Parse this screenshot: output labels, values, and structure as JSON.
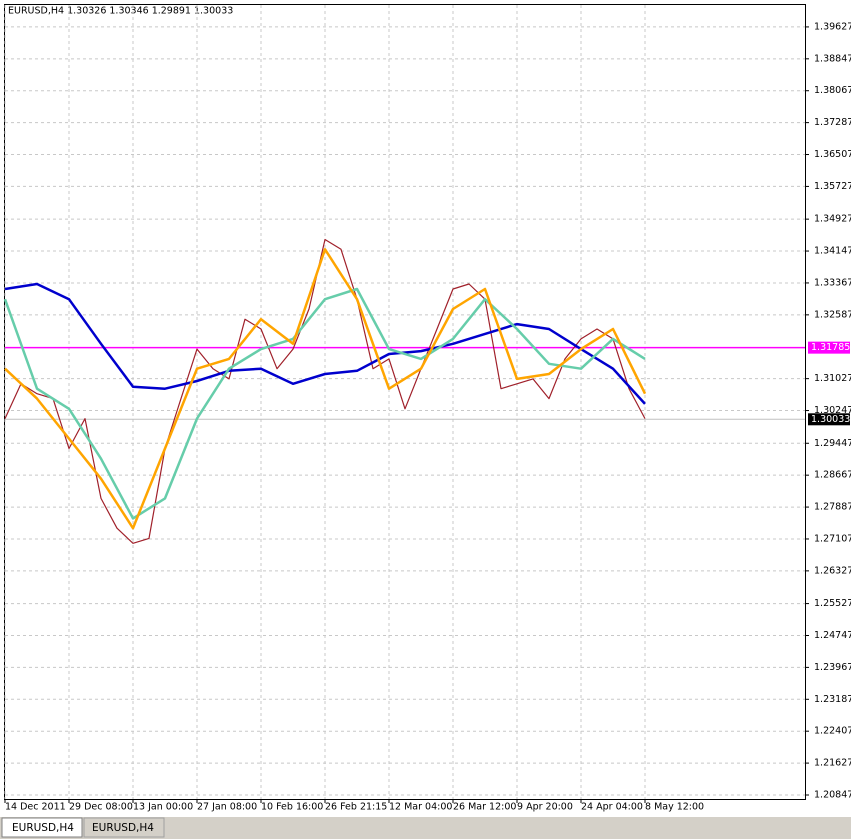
{
  "chart_data": {
    "type": "line",
    "title": "EURUSD,H4  1.30326 1.30346 1.29891 1.30033",
    "ylim": [
      1.20749,
      1.40163
    ],
    "yticks": [
      1.20847,
      1.21627,
      1.22407,
      1.23187,
      1.23967,
      1.24747,
      1.25527,
      1.26327,
      1.27107,
      1.27887,
      1.28667,
      1.29447,
      1.30247,
      1.31027,
      1.32587,
      1.33367,
      1.34147,
      1.34927,
      1.35727,
      1.36507,
      1.37287,
      1.38067,
      1.38847,
      1.39627
    ],
    "xlim": [
      0,
      12.5
    ],
    "xticks": [
      {
        "value": 0,
        "label": "14 Dec 2011"
      },
      {
        "value": 1,
        "label": "29 Dec 08:00"
      },
      {
        "value": 2,
        "label": "13 Jan 00:00"
      },
      {
        "value": 3,
        "label": "27 Jan 08:00"
      },
      {
        "value": 4,
        "label": "10 Feb 16:00"
      },
      {
        "value": 5,
        "label": "26 Feb 21:15"
      },
      {
        "value": 6,
        "label": "12 Mar 04:00"
      },
      {
        "value": 7,
        "label": "26 Mar 12:00"
      },
      {
        "value": 8,
        "label": "9 Apr 20:00"
      },
      {
        "value": 9,
        "label": "24 Apr 04:00"
      },
      {
        "value": 10,
        "label": "8 May 12:00"
      }
    ],
    "grid": true,
    "series": [
      {
        "color": "#a0202a",
        "width": 1.2,
        "x": [
          0,
          0.25,
          0.5,
          0.75,
          1,
          1.25,
          1.5,
          1.75,
          2,
          2.25,
          2.5,
          2.75,
          3,
          3.25,
          3.5,
          3.75,
          4,
          4.25,
          4.5,
          4.75,
          5,
          5.25,
          5.5,
          5.75,
          6,
          6.25,
          6.5,
          6.75,
          7,
          7.25,
          7.5,
          7.75,
          8,
          8.25,
          8.5,
          8.75,
          9,
          9.25,
          9.5,
          9.75,
          10
        ],
        "values": [
          1.3005,
          1.309,
          1.3066,
          1.3054,
          1.2932,
          1.3005,
          1.281,
          1.2737,
          1.27,
          1.2712,
          1.2932,
          1.3054,
          1.3175,
          1.3127,
          1.3102,
          1.3248,
          1.3224,
          1.3127,
          1.3175,
          1.3273,
          1.3443,
          1.3419,
          1.3297,
          1.3127,
          1.3151,
          1.3029,
          1.3127,
          1.3224,
          1.3322,
          1.3334,
          1.3297,
          1.3078,
          1.309,
          1.3102,
          1.3054,
          1.3151,
          1.32,
          1.3224,
          1.32,
          1.3078,
          1.3005
        ]
      },
      {
        "color": "#0000cd",
        "width": 2.5,
        "x": [
          0,
          0.5,
          1,
          1.5,
          2,
          2.5,
          3,
          3.5,
          4,
          4.5,
          5,
          5.5,
          6,
          6.5,
          7,
          7.5,
          8,
          8.5,
          9,
          9.5,
          10
        ],
        "values": [
          1.3322,
          1.3334,
          1.3297,
          1.3188,
          1.3083,
          1.3078,
          1.3097,
          1.3122,
          1.3127,
          1.309,
          1.3114,
          1.3122,
          1.3163,
          1.317,
          1.3188,
          1.3212,
          1.3236,
          1.3224,
          1.3175,
          1.3127,
          1.3041
        ]
      },
      {
        "color": "#66cdaa",
        "width": 2.5,
        "x": [
          0,
          0.5,
          1,
          1.5,
          2,
          2.5,
          3,
          3.5,
          4,
          4.5,
          5,
          5.5,
          6,
          6.5,
          7,
          7.5,
          8,
          8.5,
          9,
          9.5,
          10
        ],
        "values": [
          1.3297,
          1.3078,
          1.3029,
          1.2907,
          1.2761,
          1.281,
          1.3005,
          1.3127,
          1.3175,
          1.32,
          1.3297,
          1.3322,
          1.3175,
          1.3151,
          1.32,
          1.3297,
          1.3224,
          1.3139,
          1.3127,
          1.32,
          1.3151
        ]
      },
      {
        "color": "#ffa500",
        "width": 2.5,
        "x": [
          0,
          0.5,
          1,
          1.5,
          2,
          2.5,
          3,
          3.5,
          4,
          4.5,
          5,
          5.5,
          6,
          6.5,
          7,
          7.5,
          8,
          8.5,
          9,
          9.5,
          10
        ],
        "values": [
          1.3127,
          1.3054,
          1.2956,
          1.2858,
          1.2737,
          1.2932,
          1.3127,
          1.3151,
          1.3248,
          1.3188,
          1.3419,
          1.3297,
          1.3078,
          1.3127,
          1.3273,
          1.3322,
          1.3102,
          1.3114,
          1.3175,
          1.3224,
          1.3066
        ]
      }
    ],
    "hlines": [
      {
        "value": 1.31785,
        "color": "#ff00ff",
        "text_color": "#ffffff"
      },
      {
        "value": 1.30033,
        "color": "#c0c0c0",
        "text_color": "#ffffff",
        "label_bg": "#000000"
      }
    ]
  },
  "tabs": [
    "EURUSD,H4",
    "EURUSD,H4"
  ]
}
